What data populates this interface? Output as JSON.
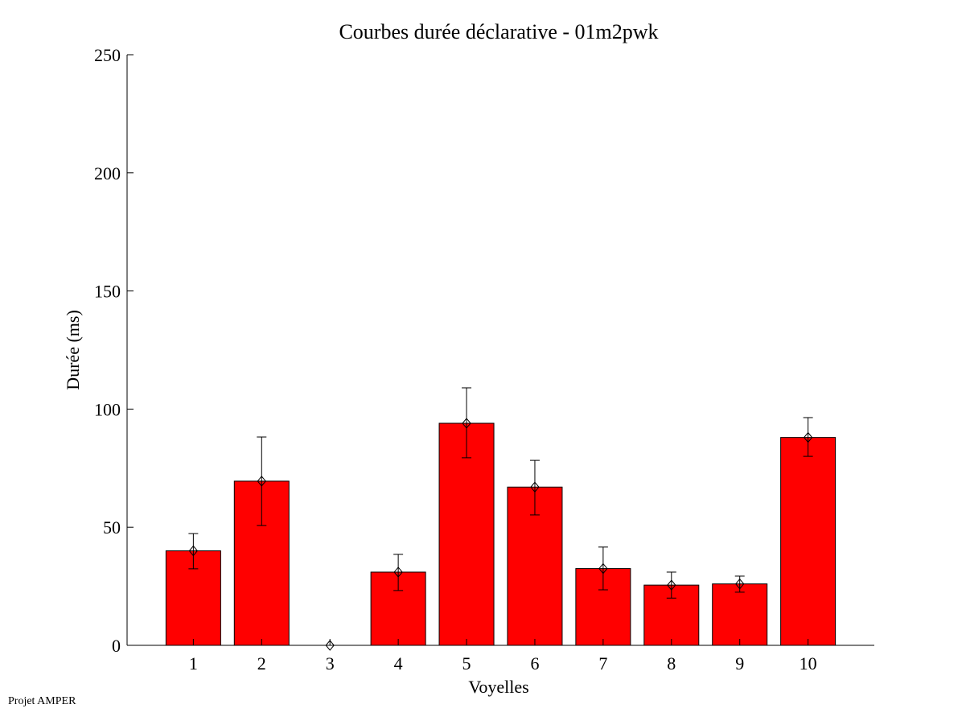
{
  "chart_data": {
    "type": "bar",
    "title": "Courbes durée déclarative - 01m2pwk",
    "xlabel": "Voyelles",
    "ylabel": "Durée (ms)",
    "categories": [
      "1",
      "2",
      "3",
      "4",
      "5",
      "6",
      "7",
      "8",
      "9",
      "10"
    ],
    "values": [
      40,
      69.5,
      0,
      31,
      94,
      67,
      32.5,
      25.5,
      26,
      88
    ],
    "error_upper": [
      47.3,
      88.2,
      0,
      38.5,
      109,
      78.3,
      41.6,
      31,
      29.3,
      96.4
    ],
    "error_lower": [
      32.4,
      50.7,
      0,
      23.2,
      79.4,
      55.2,
      23.5,
      20,
      22.5,
      80
    ],
    "ylim": [
      0,
      250
    ],
    "xlim": [
      0.03,
      10.97
    ],
    "yticks": [
      0,
      50,
      100,
      150,
      200,
      250
    ],
    "grid": false,
    "bar_color": "#ff0000"
  },
  "footer": "Projet AMPER"
}
